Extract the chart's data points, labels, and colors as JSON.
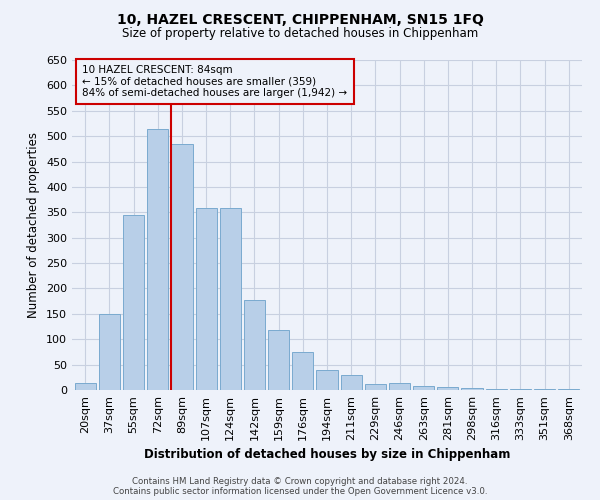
{
  "title1": "10, HAZEL CRESCENT, CHIPPENHAM, SN15 1FQ",
  "title2": "Size of property relative to detached houses in Chippenham",
  "xlabel": "Distribution of detached houses by size in Chippenham",
  "ylabel": "Number of detached properties",
  "footer1": "Contains HM Land Registry data © Crown copyright and database right 2024.",
  "footer2": "Contains public sector information licensed under the Open Government Licence v3.0.",
  "annotation_title": "10 HAZEL CRESCENT: 84sqm",
  "annotation_line1": "← 15% of detached houses are smaller (359)",
  "annotation_line2": "84% of semi-detached houses are larger (1,942) →",
  "categories": [
    "20sqm",
    "37sqm",
    "55sqm",
    "72sqm",
    "89sqm",
    "107sqm",
    "124sqm",
    "142sqm",
    "159sqm",
    "176sqm",
    "194sqm",
    "211sqm",
    "229sqm",
    "246sqm",
    "263sqm",
    "281sqm",
    "298sqm",
    "316sqm",
    "333sqm",
    "351sqm",
    "368sqm"
  ],
  "values": [
    13,
    150,
    345,
    515,
    485,
    358,
    358,
    178,
    118,
    75,
    40,
    30,
    12,
    13,
    7,
    5,
    3,
    2,
    1,
    1,
    1
  ],
  "bar_color": "#b8cfe8",
  "bar_edge_color": "#7aaacf",
  "vline_color": "#cc0000",
  "annotation_box_color": "#cc0000",
  "background_color": "#eef2fa",
  "grid_color": "#c8d0e0",
  "ylim": [
    0,
    650
  ],
  "yticks": [
    0,
    50,
    100,
    150,
    200,
    250,
    300,
    350,
    400,
    450,
    500,
    550,
    600,
    650
  ],
  "vline_bar_index": 3.5
}
